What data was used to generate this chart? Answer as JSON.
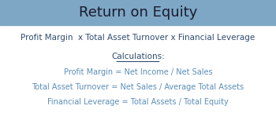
{
  "title": "Return on Equity",
  "header_bg": "#7DA7C4",
  "header_text_color": "#1a1a2e",
  "title_fontsize": 13,
  "formula_line": "Profit Margin  x Total Asset Turnover x Financial Leverage",
  "formula_color": "#2E4B6E",
  "calc_header": "Calculations:",
  "calc_header_color": "#2E4B6E",
  "calc_lines": [
    "Profit Margin = Net Income / Net Sales",
    "Total Asset Turnover = Net Sales / Average Total Assets",
    "Financial Leverage = Total Assets / Total Equity"
  ],
  "calc_color": "#5B8DB8",
  "bg_color": "#ffffff",
  "fig_width": 3.5,
  "fig_height": 1.44,
  "dpi": 100
}
